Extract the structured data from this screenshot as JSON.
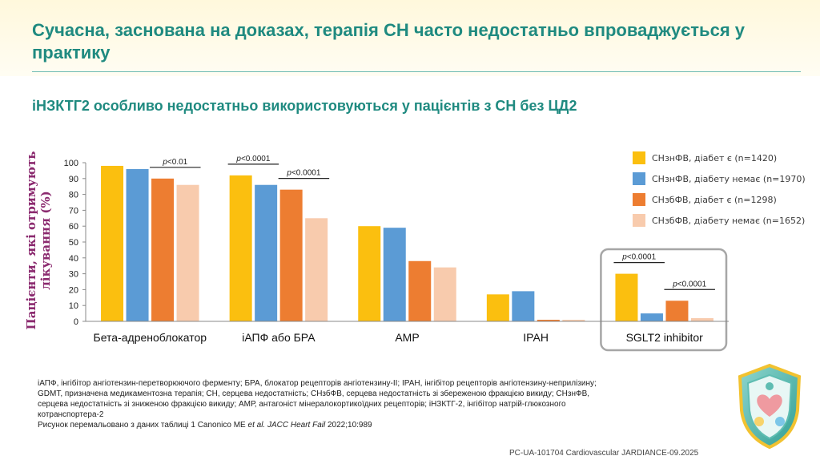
{
  "title": "Сучасна, заснована на доказах, терапія СН часто недостатньо впроваджується у практику",
  "subtitle": "іНЗКТГ2 особливо недостатньо використовуються у пацієнтів з СН без ЦД2",
  "colors": {
    "accent": "#1f8a80",
    "ylabel": "#8b2a6f"
  },
  "chart_data": {
    "type": "bar",
    "ylabel": "Пацієнти, які отримують лікування (%)",
    "ylim": [
      0,
      100
    ],
    "yticks": [
      0,
      10,
      20,
      30,
      40,
      50,
      60,
      70,
      80,
      90,
      100
    ],
    "categories": [
      "Бета-адреноблокатор",
      "іАПФ або БРА",
      "АМР",
      "ІРАН",
      "SGLT2 inhibitor"
    ],
    "series": [
      {
        "name": "СНзнФВ, діабет є (n=1420)",
        "color": "#fbbf0f",
        "values": [
          98,
          92,
          60,
          17,
          30
        ]
      },
      {
        "name": "СНзнФВ, діабету немає (n=1970)",
        "color": "#5b9bd5",
        "values": [
          96,
          86,
          59,
          19,
          5
        ]
      },
      {
        "name": "СНзбФВ, діабет є (n=1298)",
        "color": "#ed7d31",
        "values": [
          90,
          83,
          38,
          1,
          13
        ]
      },
      {
        "name": "СНзбФВ, діабету немає (n=1652)",
        "color": "#f8cbad",
        "values": [
          86,
          65,
          34,
          1,
          2
        ]
      }
    ],
    "annotations": [
      {
        "category": 0,
        "from_series": 2,
        "to_series": 3,
        "text": "p<0.01"
      },
      {
        "category": 1,
        "from_series": 0,
        "to_series": 1,
        "text": "p<0.0001"
      },
      {
        "category": 1,
        "from_series": 2,
        "to_series": 3,
        "text": "p<0.0001"
      },
      {
        "category": 4,
        "from_series": 0,
        "to_series": 1,
        "text": "p<0.0001"
      },
      {
        "category": 4,
        "from_series": 2,
        "to_series": 3,
        "text": "p<0.0001"
      }
    ],
    "highlight_category": 4
  },
  "footnote": {
    "lines": [
      "іАПФ, інгібітор ангіотензин-перетворюючого ферменту; БРА, блокатор рецепторів ангіотензину-II; ІРАН, інгібітор рецепторів ангіотензину-неприлізину;",
      "GDMT, призначена медикаментозна терапія; СН, серцева недостатність; СНзбФВ, серцева недостатність зі збереженою фракцією викиду; СНзнФВ,",
      "серцева недостатність зі зниженою фракцією викиду; АМР, антагоніст мінералокортикоїдних рецепторів; іНЗКТГ-2, інгібітор натрій-глюкозного",
      "котранспортера-2"
    ],
    "caption_prefix": "Рисунок перемальовано з даних таблиці 1 Canonico ME ",
    "caption_etal": "et al.",
    "caption_journal": " JACC Heart Fail",
    "caption_ref": " 2022;10:989"
  },
  "code": "PC-UA-101704 Cardiovascular JARDIANCE-09.2025",
  "badge_icon": "heart-shield-emblem-icon"
}
